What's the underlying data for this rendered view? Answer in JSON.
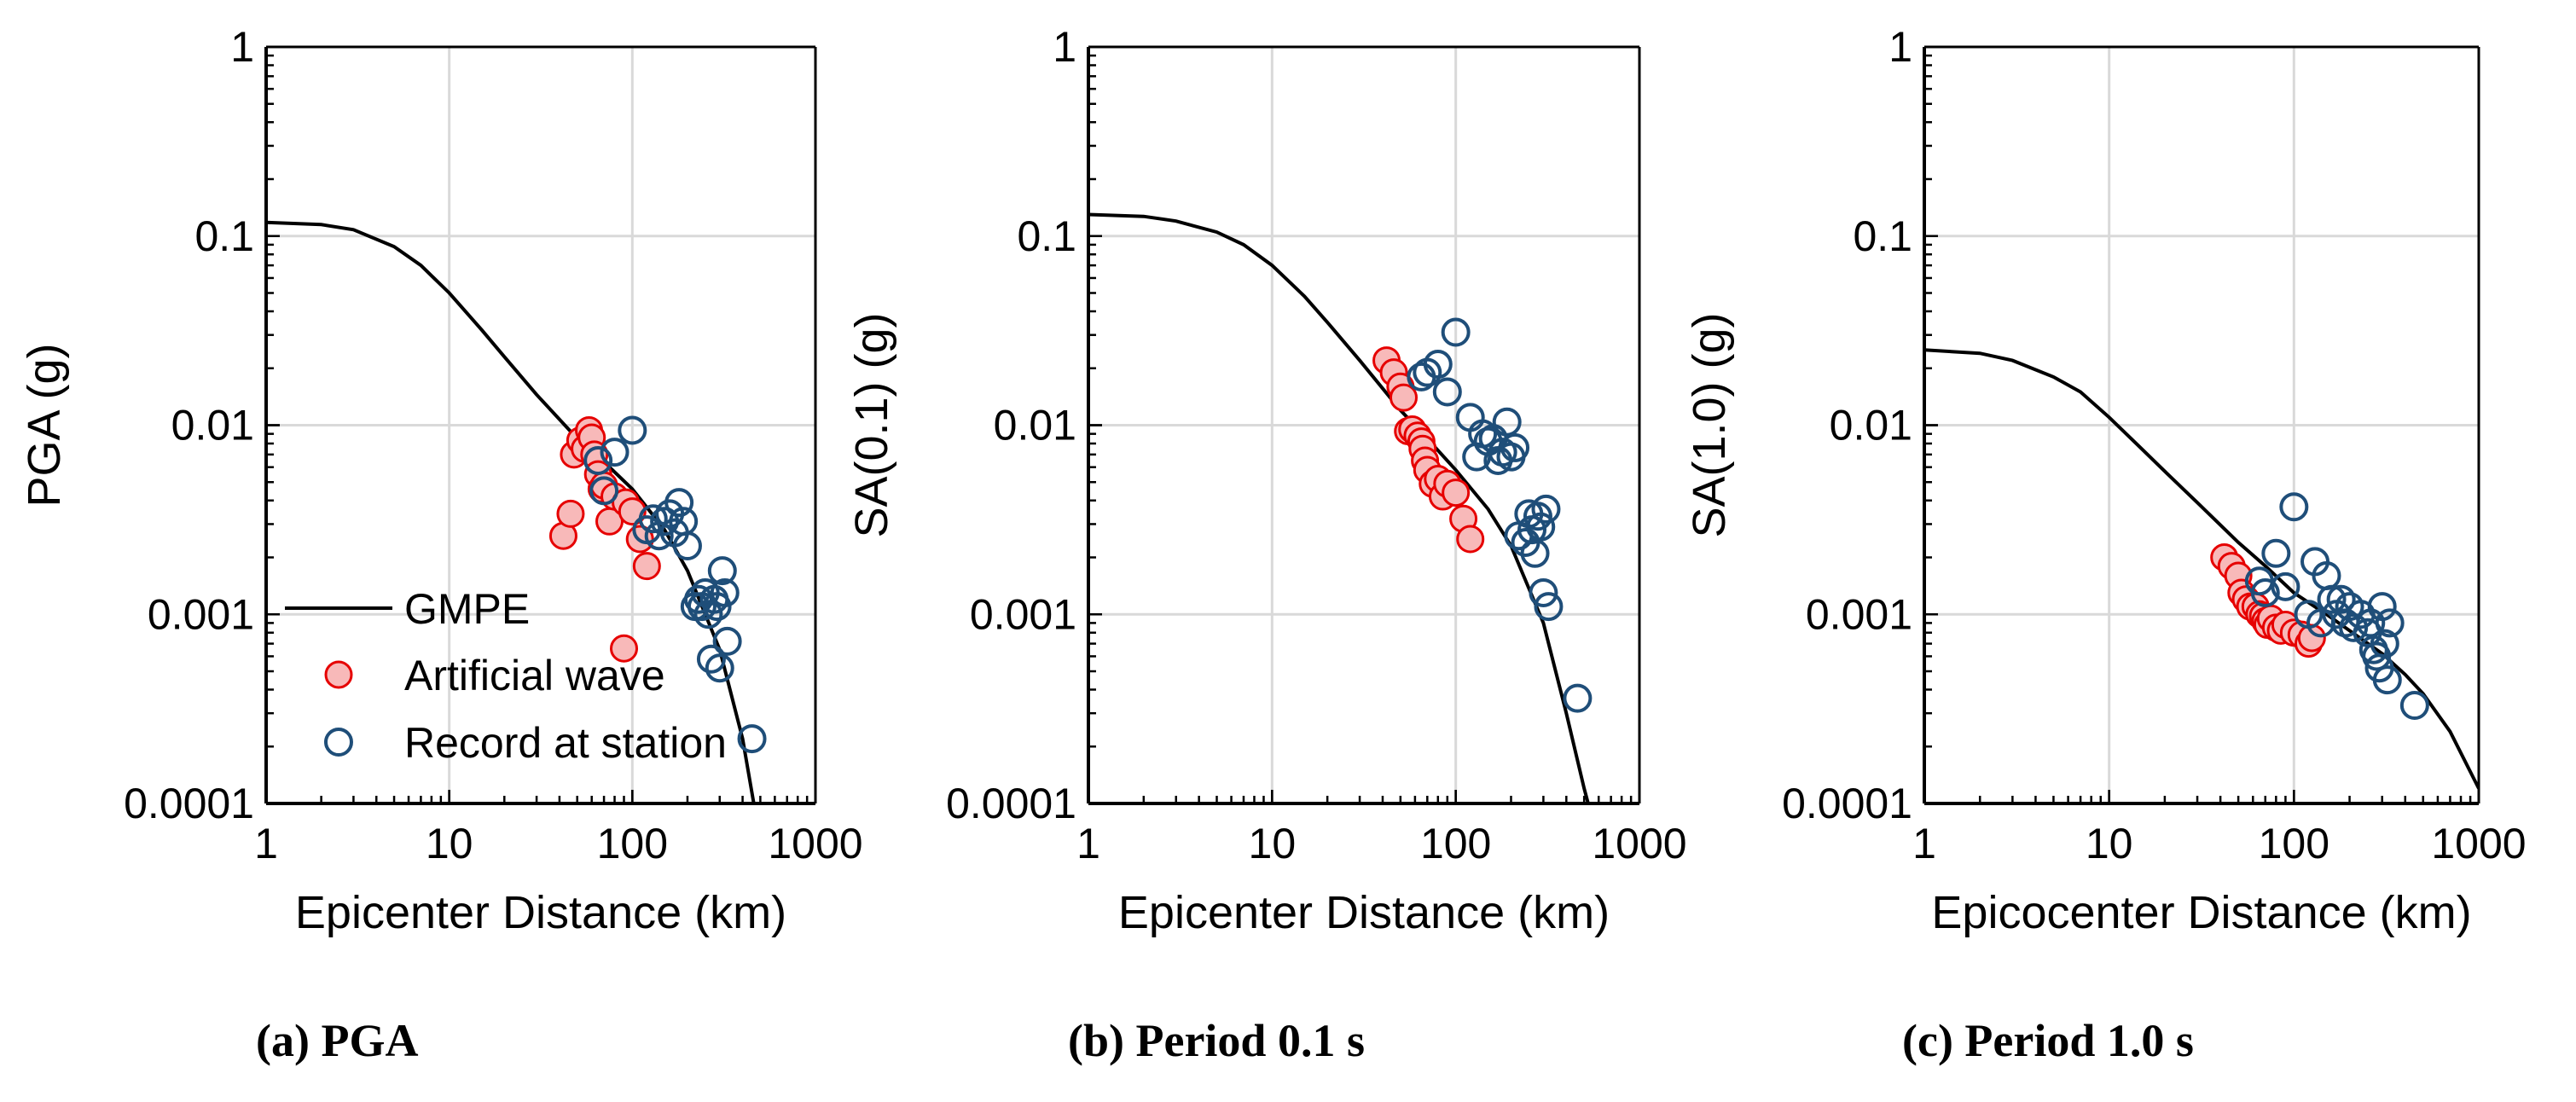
{
  "colors": {
    "artificial_fill": "#f8b9b9",
    "artificial_stroke": "#e60000",
    "record_stroke": "#1f4e79",
    "gmpe_line": "#000000",
    "grid": "#d9d9d9"
  },
  "legend": {
    "gmpe": "GMPE",
    "artificial": "Artificial wave",
    "record": "Record at station"
  },
  "chart_data": [
    {
      "type": "scatter",
      "caption": "(a) PGA",
      "xlabel": "Epicenter Distance (km)",
      "ylabel": "PGA (g)",
      "xscale": "log",
      "yscale": "log",
      "xlim": [
        1,
        1000
      ],
      "ylim": [
        0.0001,
        1
      ],
      "xticks": [
        "1",
        "10",
        "100",
        "1000"
      ],
      "yticks": [
        "0.0001",
        "0.001",
        "0.01",
        "0.1",
        "1"
      ],
      "grid": true,
      "legend_position": "bottom-left",
      "series": [
        {
          "name": "GMPE",
          "kind": "line",
          "x": [
            1,
            2,
            3,
            5,
            7,
            10,
            15,
            20,
            30,
            50,
            70,
            100,
            150,
            200,
            300,
            400,
            500
          ],
          "y": [
            0.118,
            0.115,
            0.108,
            0.088,
            0.07,
            0.05,
            0.032,
            0.023,
            0.0145,
            0.0085,
            0.0064,
            0.0046,
            0.0028,
            0.0017,
            0.00065,
            0.00022,
            6.3e-05
          ]
        },
        {
          "name": "Artificial wave",
          "kind": "markers",
          "x": [
            42,
            46,
            48,
            52,
            55,
            58,
            60,
            62,
            65,
            68,
            70,
            75,
            80,
            90,
            92,
            100,
            110,
            120
          ],
          "y": [
            0.0026,
            0.0034,
            0.007,
            0.0083,
            0.0075,
            0.0094,
            0.0086,
            0.007,
            0.0055,
            0.0046,
            0.0048,
            0.0031,
            0.0042,
            0.00066,
            0.0039,
            0.0035,
            0.0025,
            0.0018
          ]
        },
        {
          "name": "Record at station",
          "kind": "markers",
          "x": [
            65,
            70,
            80,
            100,
            120,
            130,
            140,
            150,
            160,
            170,
            180,
            190,
            200,
            220,
            230,
            240,
            250,
            260,
            270,
            280,
            290,
            300,
            310,
            320,
            330,
            450
          ],
          "y": [
            0.0065,
            0.0045,
            0.0072,
            0.0094,
            0.0028,
            0.0032,
            0.0026,
            0.0031,
            0.0034,
            0.0027,
            0.0039,
            0.0031,
            0.0023,
            0.0011,
            0.0012,
            0.0011,
            0.0013,
            0.001,
            0.00058,
            0.0012,
            0.0011,
            0.00052,
            0.0017,
            0.0013,
            0.00072,
            0.00022
          ]
        }
      ]
    },
    {
      "type": "scatter",
      "caption": "(b) Period 0.1 s",
      "xlabel": "Epicenter Distance (km)",
      "ylabel": "SA(0.1) (g)",
      "xscale": "log",
      "yscale": "log",
      "xlim": [
        1,
        1000
      ],
      "ylim": [
        0.0001,
        1
      ],
      "xticks": [
        "1",
        "10",
        "100",
        "1000"
      ],
      "yticks": [
        "0.0001",
        "0.001",
        "0.01",
        "0.1",
        "1"
      ],
      "grid": true,
      "series": [
        {
          "name": "GMPE",
          "kind": "line",
          "x": [
            1,
            2,
            3,
            5,
            7,
            10,
            15,
            20,
            30,
            50,
            70,
            100,
            150,
            200,
            300,
            400,
            500,
            550
          ],
          "y": [
            0.13,
            0.127,
            0.12,
            0.105,
            0.09,
            0.07,
            0.048,
            0.035,
            0.022,
            0.012,
            0.0085,
            0.0058,
            0.0036,
            0.0023,
            0.0009,
            0.0003,
            0.00012,
            8.5e-05
          ]
        },
        {
          "name": "Artificial wave",
          "kind": "markers",
          "x": [
            42,
            46,
            50,
            52,
            55,
            58,
            62,
            65,
            66,
            68,
            70,
            75,
            80,
            85,
            90,
            100,
            110,
            120
          ],
          "y": [
            0.022,
            0.019,
            0.016,
            0.014,
            0.0093,
            0.0095,
            0.0088,
            0.0082,
            0.0075,
            0.0065,
            0.0058,
            0.0049,
            0.0052,
            0.0042,
            0.0049,
            0.0044,
            0.0032,
            0.0025
          ]
        },
        {
          "name": "Record at station",
          "kind": "markers",
          "x": [
            65,
            70,
            80,
            90,
            100,
            120,
            130,
            140,
            150,
            160,
            170,
            180,
            190,
            200,
            210,
            220,
            240,
            250,
            260,
            270,
            280,
            290,
            300,
            310,
            320,
            460
          ],
          "y": [
            0.018,
            0.019,
            0.021,
            0.015,
            0.031,
            0.011,
            0.0068,
            0.009,
            0.0082,
            0.0085,
            0.0065,
            0.0072,
            0.0104,
            0.0068,
            0.0076,
            0.0026,
            0.0024,
            0.0034,
            0.0028,
            0.0021,
            0.0033,
            0.0029,
            0.0013,
            0.0036,
            0.0011,
            0.00036
          ]
        }
      ]
    },
    {
      "type": "scatter",
      "caption": "(c) Period 1.0 s",
      "xlabel": "Epicocenter Distance (km)",
      "ylabel": "SA(1.0) (g)",
      "xscale": "log",
      "yscale": "log",
      "xlim": [
        1,
        1000
      ],
      "ylim": [
        0.0001,
        1
      ],
      "xticks": [
        "1",
        "10",
        "100",
        "1000"
      ],
      "yticks": [
        "0.0001",
        "0.001",
        "0.01",
        "0.1",
        "1"
      ],
      "grid": true,
      "series": [
        {
          "name": "GMPE",
          "kind": "line",
          "x": [
            1,
            2,
            3,
            5,
            7,
            10,
            15,
            20,
            30,
            50,
            70,
            100,
            150,
            200,
            300,
            400,
            500,
            700,
            1000
          ],
          "y": [
            0.025,
            0.024,
            0.022,
            0.018,
            0.015,
            0.011,
            0.0075,
            0.0057,
            0.0039,
            0.0024,
            0.0018,
            0.0013,
            0.001,
            0.00082,
            0.00062,
            0.00048,
            0.00038,
            0.00024,
            0.00012
          ]
        },
        {
          "name": "Artificial wave",
          "kind": "markers",
          "x": [
            42,
            46,
            50,
            52,
            55,
            58,
            62,
            65,
            68,
            70,
            72,
            75,
            80,
            85,
            90,
            100,
            110,
            120,
            125
          ],
          "y": [
            0.002,
            0.0018,
            0.0016,
            0.0013,
            0.0012,
            0.0011,
            0.0011,
            0.001,
            0.00098,
            0.00092,
            0.00088,
            0.00095,
            0.00085,
            0.00082,
            0.00088,
            0.0008,
            0.00078,
            0.0007,
            0.00075
          ]
        },
        {
          "name": "Record at station",
          "kind": "markers",
          "x": [
            65,
            70,
            80,
            90,
            100,
            120,
            130,
            140,
            150,
            160,
            170,
            180,
            190,
            200,
            210,
            230,
            250,
            260,
            270,
            280,
            290,
            300,
            310,
            320,
            330,
            450
          ],
          "y": [
            0.0015,
            0.0013,
            0.0021,
            0.0014,
            0.0037,
            0.001,
            0.0019,
            0.0009,
            0.0016,
            0.0012,
            0.001,
            0.0012,
            0.0009,
            0.0011,
            0.00085,
            0.001,
            0.0008,
            0.0009,
            0.00065,
            0.0006,
            0.00052,
            0.0011,
            0.0007,
            0.00045,
            0.0009,
            0.00033
          ]
        }
      ]
    }
  ]
}
